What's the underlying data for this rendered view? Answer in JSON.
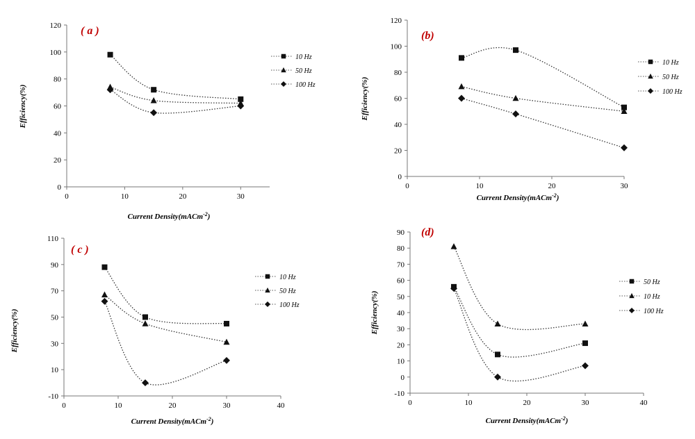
{
  "chart_data": [
    {
      "type": "line",
      "panel_label": "( a )",
      "xlabel": "Current Density(mACm",
      "xlabel_sup": "-2",
      "xlabel_tail": ")",
      "ylabel": "Efficiency(%)",
      "xlim": [
        0,
        35
      ],
      "ylim": [
        0,
        120
      ],
      "xticks": [
        0,
        10,
        20,
        30
      ],
      "yticks": [
        0,
        20,
        40,
        60,
        80,
        100,
        120
      ],
      "legend_position": "right",
      "series": [
        {
          "name": "10 Hz",
          "marker": "square",
          "x": [
            7.5,
            15,
            30
          ],
          "y": [
            98,
            72,
            65
          ]
        },
        {
          "name": "50 Hz",
          "marker": "triangle",
          "x": [
            7.5,
            15,
            30
          ],
          "y": [
            74,
            64,
            62
          ]
        },
        {
          "name": "100 Hz",
          "marker": "diamond",
          "x": [
            7.5,
            15,
            30
          ],
          "y": [
            72,
            55,
            60
          ]
        }
      ]
    },
    {
      "type": "line",
      "panel_label": "(b)",
      "xlabel": "Current Density(mACm",
      "xlabel_sup": "-2",
      "xlabel_tail": ")",
      "ylabel": "Efficiency(%)",
      "xlim": [
        0,
        30
      ],
      "ylim": [
        0,
        120
      ],
      "xticks": [
        0,
        10,
        20,
        30
      ],
      "yticks": [
        0,
        20,
        40,
        60,
        80,
        100,
        120
      ],
      "legend_position": "right",
      "series": [
        {
          "name": "10 Hz",
          "marker": "square",
          "x": [
            7.5,
            15,
            30
          ],
          "y": [
            91,
            97,
            53
          ]
        },
        {
          "name": "50 Hz",
          "marker": "triangle",
          "x": [
            7.5,
            15,
            30
          ],
          "y": [
            69,
            60,
            50
          ]
        },
        {
          "name": "100 Hz",
          "marker": "diamond",
          "x": [
            7.5,
            15,
            30
          ],
          "y": [
            60,
            48,
            22
          ]
        }
      ]
    },
    {
      "type": "line",
      "panel_label": "( c )",
      "xlabel": "Current Density(mACm",
      "xlabel_sup": "-2",
      "xlabel_tail": ")",
      "ylabel": "Efficiency(%)",
      "xlim": [
        0,
        40
      ],
      "ylim": [
        -10,
        110
      ],
      "xticks": [
        0,
        10,
        20,
        30,
        40
      ],
      "yticks": [
        -10,
        10,
        30,
        50,
        70,
        90,
        110
      ],
      "legend_position": "right",
      "series": [
        {
          "name": "10 Hz",
          "marker": "square",
          "x": [
            7.5,
            15,
            30
          ],
          "y": [
            88,
            50,
            45
          ]
        },
        {
          "name": "50 Hz",
          "marker": "triangle",
          "x": [
            7.5,
            15,
            30
          ],
          "y": [
            67,
            45,
            31
          ]
        },
        {
          "name": "100 Hz",
          "marker": "diamond",
          "x": [
            7.5,
            15,
            30
          ],
          "y": [
            62,
            0,
            17
          ]
        }
      ]
    },
    {
      "type": "line",
      "panel_label": "(d)",
      "xlabel": "Current Density(mACm",
      "xlabel_sup": "-2",
      "xlabel_tail": ")",
      "ylabel": "Efficiency(%)",
      "xlim": [
        0,
        40
      ],
      "ylim": [
        -10,
        90
      ],
      "xticks": [
        0,
        10,
        20,
        30,
        40
      ],
      "yticks": [
        -10,
        0,
        10,
        20,
        30,
        40,
        50,
        60,
        70,
        80,
        90
      ],
      "legend_position": "right",
      "series": [
        {
          "name": "50 Hz",
          "marker": "square",
          "x": [
            7.5,
            15,
            30
          ],
          "y": [
            56,
            14,
            21
          ]
        },
        {
          "name": "10 Hz",
          "marker": "triangle",
          "x": [
            7.5,
            15,
            30
          ],
          "y": [
            81,
            33,
            33
          ]
        },
        {
          "name": "100 Hz",
          "marker": "diamond",
          "x": [
            7.5,
            15,
            30
          ],
          "y": [
            55,
            0,
            7
          ]
        }
      ]
    }
  ]
}
